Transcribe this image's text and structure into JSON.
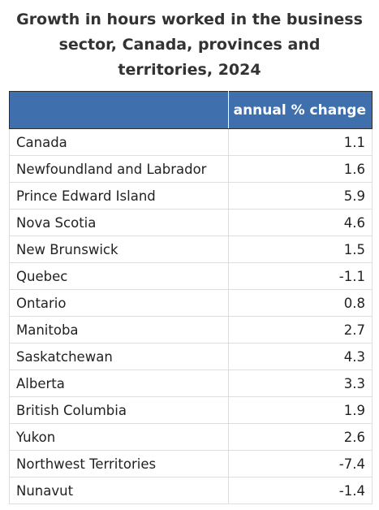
{
  "title_lines": [
    "Growth in hours worked in the business",
    "sector, Canada, provinces and",
    "territories, 2024"
  ],
  "chart_data": {
    "type": "table",
    "title": "Growth in hours worked in the business sector, Canada, provinces and territories, 2024",
    "columns": [
      "",
      "annual % change"
    ],
    "rows": [
      {
        "region": "Canada",
        "value": "1.1"
      },
      {
        "region": "Newfoundland and Labrador",
        "value": "1.6"
      },
      {
        "region": "Prince Edward Island",
        "value": "5.9"
      },
      {
        "region": "Nova Scotia",
        "value": "4.6"
      },
      {
        "region": "New Brunswick",
        "value": "1.5"
      },
      {
        "region": "Quebec",
        "value": "-1.1"
      },
      {
        "region": "Ontario",
        "value": "0.8"
      },
      {
        "region": "Manitoba",
        "value": "2.7"
      },
      {
        "region": "Saskatchewan",
        "value": "4.3"
      },
      {
        "region": "Alberta",
        "value": "3.3"
      },
      {
        "region": "British Columbia",
        "value": "1.9"
      },
      {
        "region": "Yukon",
        "value": "2.6"
      },
      {
        "region": "Northwest Territories",
        "value": "-7.4"
      },
      {
        "region": "Nunavut",
        "value": "-1.4"
      }
    ]
  },
  "colors": {
    "header_background": "#3f6fad",
    "header_text": "#ffffff",
    "title_text": "#333333",
    "cell_border": "#dedede"
  }
}
